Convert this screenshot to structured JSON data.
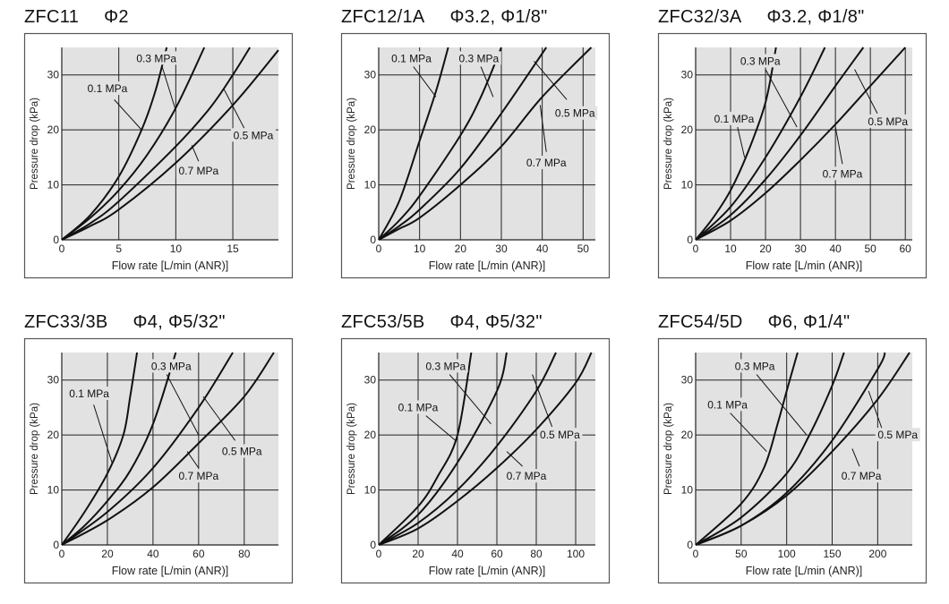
{
  "chart_data": [
    {
      "type": "line",
      "title": "ZFC11",
      "subtitle": "Φ2",
      "xlabel": "Flow rate [L/min (ANR)]",
      "ylabel": "Pressure drop (kPa)",
      "xlim": [
        0,
        19
      ],
      "ylim": [
        0,
        35
      ],
      "xticks": [
        0,
        5,
        10,
        15
      ],
      "yticks": [
        0,
        10,
        20,
        30
      ],
      "grid": true,
      "series": [
        {
          "name": "0.1 MPa",
          "points": [
            [
              0,
              0
            ],
            [
              2.5,
              4.5
            ],
            [
              5,
              11.5
            ],
            [
              7,
              20
            ],
            [
              8.2,
              27
            ],
            [
              9.2,
              35
            ]
          ]
        },
        {
          "name": "0.3 MPa",
          "points": [
            [
              0,
              0
            ],
            [
              2.5,
              4
            ],
            [
              5,
              9
            ],
            [
              7.5,
              15.5
            ],
            [
              10,
              24
            ],
            [
              12.5,
              35
            ]
          ]
        },
        {
          "name": "0.5 MPa",
          "points": [
            [
              0,
              0
            ],
            [
              2.5,
              3
            ],
            [
              5,
              7
            ],
            [
              10,
              17
            ],
            [
              13,
              24
            ],
            [
              15,
              30
            ],
            [
              16.5,
              35
            ]
          ]
        },
        {
          "name": "0.7 MPa",
          "points": [
            [
              0,
              0
            ],
            [
              2.5,
              2.5
            ],
            [
              5,
              5.5
            ],
            [
              10,
              14
            ],
            [
              15,
              24.5
            ],
            [
              19,
              34.5
            ]
          ]
        }
      ]
    },
    {
      "type": "line",
      "title": "ZFC12/1A",
      "subtitle": "Φ3.2, Φ1/8\"",
      "xlabel": "Flow rate [L/min (ANR)]",
      "ylabel": "Pressure drop (kPa)",
      "xlim": [
        0,
        53
      ],
      "ylim": [
        0,
        35
      ],
      "xticks": [
        0,
        10,
        20,
        30,
        40,
        50
      ],
      "yticks": [
        0,
        10,
        20,
        30
      ],
      "grid": true,
      "series": [
        {
          "name": "0.1 MPa",
          "points": [
            [
              0,
              0
            ],
            [
              5,
              7
            ],
            [
              10,
              18
            ],
            [
              14,
              27
            ],
            [
              17,
              35
            ]
          ]
        },
        {
          "name": "0.3 MPa",
          "points": [
            [
              0,
              0
            ],
            [
              5,
              3.5
            ],
            [
              10,
              8
            ],
            [
              20,
              19
            ],
            [
              25,
              26
            ],
            [
              30,
              35
            ]
          ]
        },
        {
          "name": "0.5 MPa",
          "points": [
            [
              0,
              0
            ],
            [
              5,
              2.5
            ],
            [
              10,
              5.5
            ],
            [
              20,
              13
            ],
            [
              30,
              23
            ],
            [
              41,
              35
            ]
          ]
        },
        {
          "name": "0.7 MPa",
          "points": [
            [
              0,
              0
            ],
            [
              5,
              2
            ],
            [
              10,
              4
            ],
            [
              20,
              10
            ],
            [
              30,
              17
            ],
            [
              40,
              26
            ],
            [
              52,
              35
            ]
          ]
        }
      ]
    },
    {
      "type": "line",
      "title": "ZFC32/3A",
      "subtitle": "Φ3.2, Φ1/8\"",
      "xlabel": "Flow rate [L/min (ANR)]",
      "ylabel": "Pressure drop (kPa)",
      "xlim": [
        0,
        62
      ],
      "ylim": [
        0,
        35
      ],
      "xticks": [
        0,
        10,
        20,
        30,
        40,
        50,
        60
      ],
      "yticks": [
        0,
        10,
        20,
        30
      ],
      "grid": true,
      "series": [
        {
          "name": "0.1 MPa",
          "points": [
            [
              0,
              0
            ],
            [
              5,
              4
            ],
            [
              10,
              9
            ],
            [
              15,
              16
            ],
            [
              20,
              25
            ],
            [
              23,
              35
            ]
          ]
        },
        {
          "name": "0.3 MPa",
          "points": [
            [
              0,
              0
            ],
            [
              10,
              6
            ],
            [
              20,
              15
            ],
            [
              30,
              26
            ],
            [
              37,
              35
            ]
          ]
        },
        {
          "name": "0.5 MPa",
          "points": [
            [
              0,
              0
            ],
            [
              10,
              4.5
            ],
            [
              20,
              11
            ],
            [
              30,
              19
            ],
            [
              40,
              28
            ],
            [
              48,
              35
            ]
          ]
        },
        {
          "name": "0.7 MPa",
          "points": [
            [
              0,
              0
            ],
            [
              10,
              3.5
            ],
            [
              20,
              8.5
            ],
            [
              30,
              14.5
            ],
            [
              40,
              21
            ],
            [
              50,
              28
            ],
            [
              60,
              35
            ]
          ]
        }
      ]
    },
    {
      "type": "line",
      "title": "ZFC33/3B",
      "subtitle": "Φ4, Φ5/32\"",
      "xlabel": "Flow rate [L/min (ANR)]",
      "ylabel": "Pressure drop (kPa)",
      "xlim": [
        0,
        95
      ],
      "ylim": [
        0,
        35
      ],
      "xticks": [
        0,
        20,
        40,
        60,
        80
      ],
      "yticks": [
        0,
        10,
        20,
        30
      ],
      "grid": true,
      "series": [
        {
          "name": "0.1 MPa",
          "points": [
            [
              0,
              0
            ],
            [
              10,
              6
            ],
            [
              20,
              13
            ],
            [
              27,
              20
            ],
            [
              30,
              27
            ],
            [
              33,
              35
            ]
          ]
        },
        {
          "name": "0.3 MPa",
          "points": [
            [
              0,
              0
            ],
            [
              10,
              3.5
            ],
            [
              20,
              8
            ],
            [
              30,
              13.5
            ],
            [
              40,
              22
            ],
            [
              50,
              35
            ]
          ]
        },
        {
          "name": "0.5 MPa",
          "points": [
            [
              0,
              0
            ],
            [
              20,
              6
            ],
            [
              40,
              14
            ],
            [
              60,
              25
            ],
            [
              75,
              35
            ]
          ]
        },
        {
          "name": "0.7 MPa",
          "points": [
            [
              0,
              0
            ],
            [
              20,
              4.5
            ],
            [
              40,
              10.5
            ],
            [
              60,
              18.5
            ],
            [
              80,
              27
            ],
            [
              93,
              35
            ]
          ]
        }
      ]
    },
    {
      "type": "line",
      "title": "ZFC53/5B",
      "subtitle": "Φ4, Φ5/32\"",
      "xlabel": "Flow rate [L/min (ANR)]",
      "ylabel": "Pressure drop (kPa)",
      "xlim": [
        0,
        110
      ],
      "ylim": [
        0,
        35
      ],
      "xticks": [
        0,
        20,
        40,
        60,
        80,
        100
      ],
      "yticks": [
        0,
        10,
        20,
        30
      ],
      "grid": true,
      "series": [
        {
          "name": "0.1 MPa",
          "points": [
            [
              0,
              0
            ],
            [
              20,
              7
            ],
            [
              30,
              12.5
            ],
            [
              40,
              20
            ],
            [
              47,
              35
            ]
          ]
        },
        {
          "name": "0.3 MPa",
          "points": [
            [
              0,
              0
            ],
            [
              20,
              5.5
            ],
            [
              40,
              15
            ],
            [
              60,
              28
            ],
            [
              65,
              35
            ]
          ]
        },
        {
          "name": "0.5 MPa",
          "points": [
            [
              0,
              0
            ],
            [
              20,
              4
            ],
            [
              40,
              10
            ],
            [
              60,
              18
            ],
            [
              80,
              28
            ],
            [
              90,
              35
            ]
          ]
        },
        {
          "name": "0.7 MPa",
          "points": [
            [
              0,
              0
            ],
            [
              20,
              3
            ],
            [
              40,
              8
            ],
            [
              60,
              14
            ],
            [
              80,
              21
            ],
            [
              100,
              29.5
            ],
            [
              108,
              35
            ]
          ]
        }
      ]
    },
    {
      "type": "line",
      "title": "ZFC54/5D",
      "subtitle": "Φ6, Φ1/4\"",
      "xlabel": "Flow rate [L/min (ANR)]",
      "ylabel": "Pressure drop (kPa)",
      "xlim": [
        0,
        238
      ],
      "ylim": [
        0,
        35
      ],
      "xticks": [
        0,
        50,
        100,
        150,
        200
      ],
      "yticks": [
        0,
        10,
        20,
        30
      ],
      "grid": true,
      "series": [
        {
          "name": "0.1 MPa",
          "points": [
            [
              0,
              0
            ],
            [
              50,
              7.5
            ],
            [
              75,
              14
            ],
            [
              90,
              22
            ],
            [
              100,
              28
            ],
            [
              112,
              35
            ]
          ]
        },
        {
          "name": "0.3 MPa",
          "points": [
            [
              0,
              0
            ],
            [
              50,
              5
            ],
            [
              100,
              13
            ],
            [
              125,
              20
            ],
            [
              150,
              29
            ],
            [
              163,
              35
            ]
          ]
        },
        {
          "name": "0.5 MPa",
          "points": [
            [
              0,
              0
            ],
            [
              50,
              3.5
            ],
            [
              100,
              9.5
            ],
            [
              150,
              19
            ],
            [
              200,
              32
            ],
            [
              208,
              35
            ]
          ]
        },
        {
          "name": "0.7 MPa",
          "points": [
            [
              0,
              0
            ],
            [
              50,
              3.5
            ],
            [
              100,
              9
            ],
            [
              150,
              17
            ],
            [
              200,
              26.5
            ],
            [
              235,
              35
            ]
          ]
        }
      ]
    }
  ]
}
